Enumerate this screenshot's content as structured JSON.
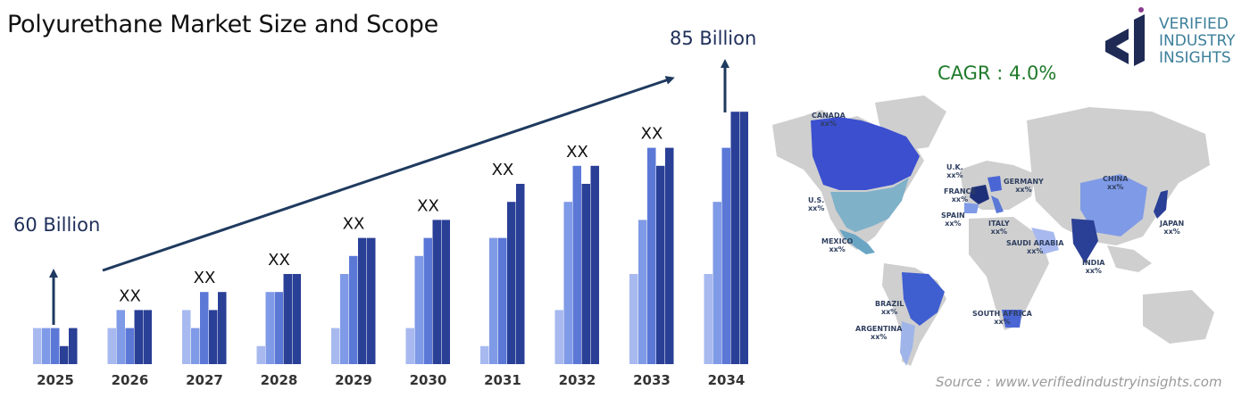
{
  "title": "Polyurethane Market Size and Scope",
  "cagr": "CAGR : 4.0%",
  "source": "Source : www.verifiedindustryinsights.com",
  "logo": {
    "line1": "VERIFIED",
    "line2": "INDUSTRY",
    "line3": "INSIGHTS"
  },
  "colors": {
    "bar1": "#a7b9ef",
    "bar2": "#7f9ae6",
    "bar3": "#5b78d7",
    "bar4": "#2a3f96",
    "arrow": "#1f3a5f",
    "cagr": "#1f7a2a"
  },
  "chart_data": {
    "type": "bar",
    "title": "Polyurethane Market Size and Scope",
    "categories": [
      "2025",
      "2026",
      "2027",
      "2028",
      "2029",
      "2030",
      "2031",
      "2032",
      "2033",
      "2034"
    ],
    "start_label": "60 Billion",
    "end_label": "85 Billion",
    "value_labels": [
      "",
      "XX",
      "XX",
      "XX",
      "XX",
      "XX",
      "XX",
      "XX",
      "XX",
      ""
    ],
    "bars": [
      [
        2,
        2,
        2,
        1,
        2
      ],
      [
        2,
        3,
        2,
        3,
        3
      ],
      [
        3,
        2,
        4,
        3,
        4
      ],
      [
        1,
        4,
        4,
        5,
        5
      ],
      [
        2,
        5,
        6,
        7,
        7
      ],
      [
        2,
        6,
        7,
        8,
        8
      ],
      [
        1,
        7,
        7,
        9,
        10
      ],
      [
        3,
        9,
        11,
        10,
        11
      ],
      [
        5,
        8,
        12,
        11,
        12
      ],
      [
        5,
        9,
        12,
        14,
        14
      ]
    ]
  },
  "map": {
    "countries": [
      {
        "name": "CANADA",
        "value": "xx%"
      },
      {
        "name": "U.S.",
        "value": "xx%"
      },
      {
        "name": "MEXICO",
        "value": "xx%"
      },
      {
        "name": "BRAZIL",
        "value": "xx%"
      },
      {
        "name": "ARGENTINA",
        "value": "xx%"
      },
      {
        "name": "U.K.",
        "value": "xx%"
      },
      {
        "name": "FRANCE",
        "value": "xx%"
      },
      {
        "name": "SPAIN",
        "value": "xx%"
      },
      {
        "name": "GERMANY",
        "value": "xx%"
      },
      {
        "name": "ITALY",
        "value": "xx%"
      },
      {
        "name": "SAUDI ARABIA",
        "value": "xx%"
      },
      {
        "name": "SOUTH AFRICA",
        "value": "xx%"
      },
      {
        "name": "CHINA",
        "value": "xx%"
      },
      {
        "name": "INDIA",
        "value": "xx%"
      },
      {
        "name": "JAPAN",
        "value": "xx%"
      }
    ]
  }
}
